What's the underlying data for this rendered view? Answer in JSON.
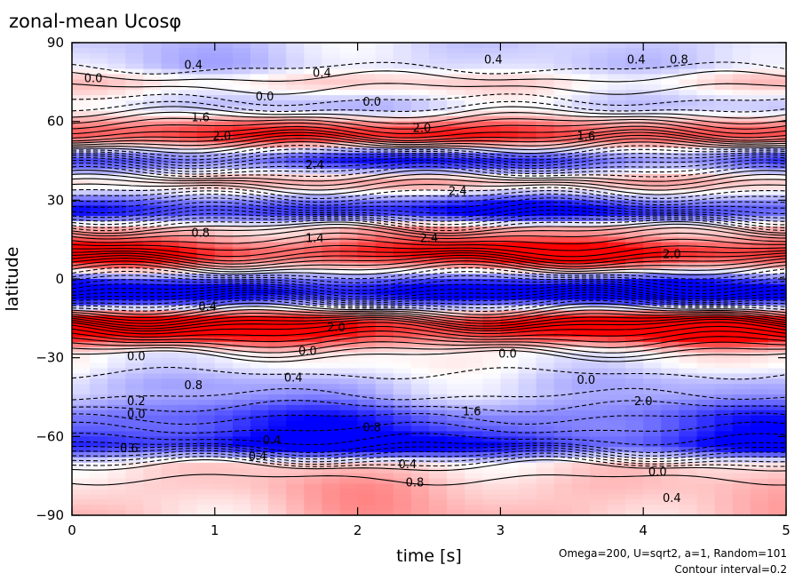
{
  "chart_data": {
    "type": "heatmap",
    "title": "zonal-mean Ucosφ",
    "xlabel": "time [s]",
    "ylabel": "latitude",
    "xlim": [
      0,
      5
    ],
    "ylim": [
      -90,
      90
    ],
    "x_ticks": [
      "0",
      "1",
      "2",
      "3",
      "4",
      "5"
    ],
    "y_ticks": [
      "90",
      "60",
      "30",
      "0",
      "−30",
      "−60",
      "−90"
    ],
    "notes": [
      "Omega=200, U=sqrt2, a=1, Random=101",
      "Contour interval=0.2"
    ],
    "colors": {
      "positive": "#ff0000",
      "negative": "#0000ff",
      "neutral": "#ffffff"
    },
    "contour_interval": 0.2,
    "bands": [
      {
        "lat": 82,
        "value": -0.4
      },
      {
        "lat": 75,
        "value": 0.3
      },
      {
        "lat": 66,
        "value": -0.4
      },
      {
        "lat": 55,
        "value": 1.8
      },
      {
        "lat": 45,
        "value": -1.6
      },
      {
        "lat": 37,
        "value": 0.6
      },
      {
        "lat": 26,
        "value": -2.0
      },
      {
        "lat": 18,
        "value": 0.8
      },
      {
        "lat": 10,
        "value": 2.2
      },
      {
        "lat": -5,
        "value": -2.6
      },
      {
        "lat": -18,
        "value": 2.6
      },
      {
        "lat": -30,
        "value": 0.0
      },
      {
        "lat": -42,
        "value": -0.6
      },
      {
        "lat": -55,
        "value": -1.6
      },
      {
        "lat": -63,
        "value": -2.2
      },
      {
        "lat": -72,
        "value": 0.4
      },
      {
        "lat": -80,
        "value": 0.6
      }
    ],
    "contour_labels": [
      {
        "t": 0.15,
        "lat": 75,
        "text": "0.0"
      },
      {
        "t": 0.85,
        "lat": 80,
        "text": "0.4"
      },
      {
        "t": 1.75,
        "lat": 77,
        "text": "0.4"
      },
      {
        "t": 2.95,
        "lat": 82,
        "text": "0.4"
      },
      {
        "t": 3.95,
        "lat": 82,
        "text": "0.4"
      },
      {
        "t": 4.25,
        "lat": 82,
        "text": "0.8"
      },
      {
        "t": 1.35,
        "lat": 68,
        "text": "0.0"
      },
      {
        "t": 2.1,
        "lat": 66,
        "text": "0.0"
      },
      {
        "t": 0.9,
        "lat": 60,
        "text": "1.6"
      },
      {
        "t": 1.05,
        "lat": 53,
        "text": "2.0"
      },
      {
        "t": 2.45,
        "lat": 56,
        "text": "2.0"
      },
      {
        "t": 3.6,
        "lat": 53,
        "text": "1.6"
      },
      {
        "t": 1.7,
        "lat": 42,
        "text": "2.4"
      },
      {
        "t": 2.7,
        "lat": 32,
        "text": "2.4"
      },
      {
        "t": 0.9,
        "lat": 16,
        "text": "0.8"
      },
      {
        "t": 1.7,
        "lat": 14,
        "text": "1.4"
      },
      {
        "t": 2.5,
        "lat": 14,
        "text": "2.4"
      },
      {
        "t": 4.2,
        "lat": 8,
        "text": "2.0"
      },
      {
        "t": 0.95,
        "lat": -12,
        "text": "0.4"
      },
      {
        "t": 1.85,
        "lat": -20,
        "text": "2.0"
      },
      {
        "t": 1.65,
        "lat": -29,
        "text": "0.0"
      },
      {
        "t": 3.05,
        "lat": -30,
        "text": "0.0"
      },
      {
        "t": 0.45,
        "lat": -31,
        "text": "0.0"
      },
      {
        "t": 1.55,
        "lat": -39,
        "text": "0.4"
      },
      {
        "t": 0.85,
        "lat": -42,
        "text": "0.8"
      },
      {
        "t": 3.6,
        "lat": -40,
        "text": "0.0"
      },
      {
        "t": 0.45,
        "lat": -48,
        "text": "0.2"
      },
      {
        "t": 0.45,
        "lat": -53,
        "text": "0.0"
      },
      {
        "t": 2.8,
        "lat": -52,
        "text": "1.6"
      },
      {
        "t": 2.1,
        "lat": -58,
        "text": "0.8"
      },
      {
        "t": 4.0,
        "lat": -48,
        "text": "2.0"
      },
      {
        "t": 1.4,
        "lat": -63,
        "text": "0.4"
      },
      {
        "t": 1.3,
        "lat": -69,
        "text": "0.4"
      },
      {
        "t": 0.4,
        "lat": -66,
        "text": "0.6"
      },
      {
        "t": 2.35,
        "lat": -72,
        "text": "0.4"
      },
      {
        "t": 2.4,
        "lat": -79,
        "text": "0.8"
      },
      {
        "t": 4.1,
        "lat": -75,
        "text": "0.0"
      },
      {
        "t": 4.2,
        "lat": -85,
        "text": "0.4"
      }
    ]
  }
}
